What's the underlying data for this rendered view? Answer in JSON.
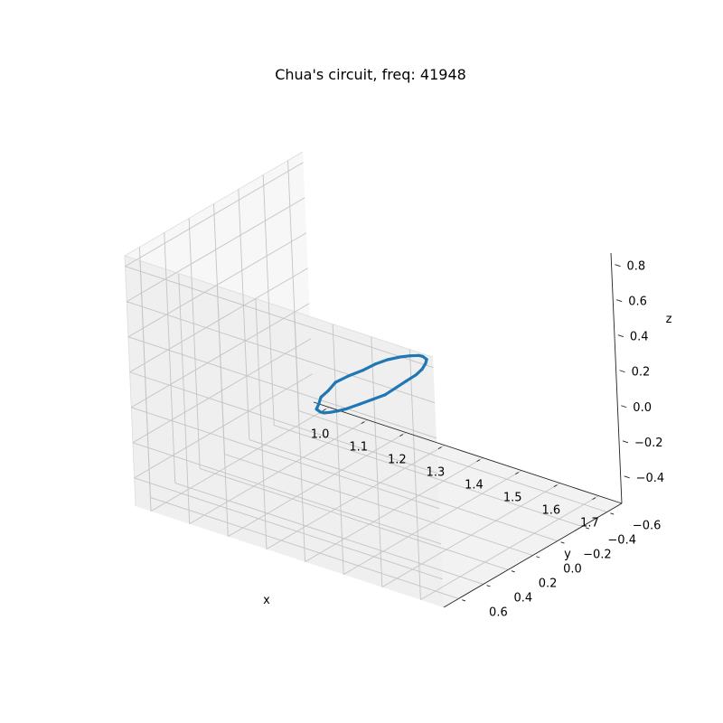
{
  "chart_data": {
    "type": "line",
    "projection": "3d",
    "title": "Chua's circuit, freq: 41948",
    "xlabel": "x",
    "ylabel": "y",
    "zlabel": "z",
    "xlim": [
      0.96,
      1.76
    ],
    "ylim": [
      -0.72,
      0.72
    ],
    "zlim": [
      -0.56,
      0.86
    ],
    "x_ticks": [
      "1.0",
      "1.1",
      "1.2",
      "1.3",
      "1.4",
      "1.5",
      "1.6",
      "1.7"
    ],
    "y_ticks": [
      "−0.6",
      "−0.4",
      "−0.2",
      "0.0",
      "0.2",
      "0.4",
      "0.6"
    ],
    "z_ticks": [
      "−0.4",
      "−0.2",
      "0.0",
      "0.2",
      "0.4",
      "0.6",
      "0.8"
    ],
    "grid": true,
    "series_color": "#1f77b4",
    "series": [
      {
        "x": [
          1.01,
          1.04,
          1.08,
          1.13,
          1.19,
          1.26,
          1.34,
          1.42,
          1.5,
          1.57,
          1.63,
          1.68,
          1.71,
          1.72,
          1.71,
          1.68,
          1.64,
          1.58,
          1.51,
          1.43,
          1.35,
          1.27,
          1.19,
          1.12,
          1.07,
          1.03,
          1.01,
          1.0,
          1.01
        ],
        "y": [
          -0.6,
          -0.53,
          -0.44,
          -0.34,
          -0.22,
          -0.08,
          0.06,
          0.2,
          0.33,
          0.45,
          0.55,
          0.62,
          0.66,
          0.66,
          0.62,
          0.56,
          0.47,
          0.36,
          0.23,
          0.09,
          -0.05,
          -0.19,
          -0.31,
          -0.42,
          -0.51,
          -0.57,
          -0.61,
          -0.62,
          -0.6
        ],
        "z": [
          -0.52,
          -0.48,
          -0.42,
          -0.34,
          -0.24,
          -0.12,
          0.02,
          0.16,
          0.3,
          0.44,
          0.56,
          0.66,
          0.73,
          0.77,
          0.77,
          0.74,
          0.68,
          0.59,
          0.48,
          0.35,
          0.21,
          0.06,
          -0.08,
          -0.21,
          -0.33,
          -0.42,
          -0.49,
          -0.53,
          -0.52
        ]
      }
    ]
  }
}
